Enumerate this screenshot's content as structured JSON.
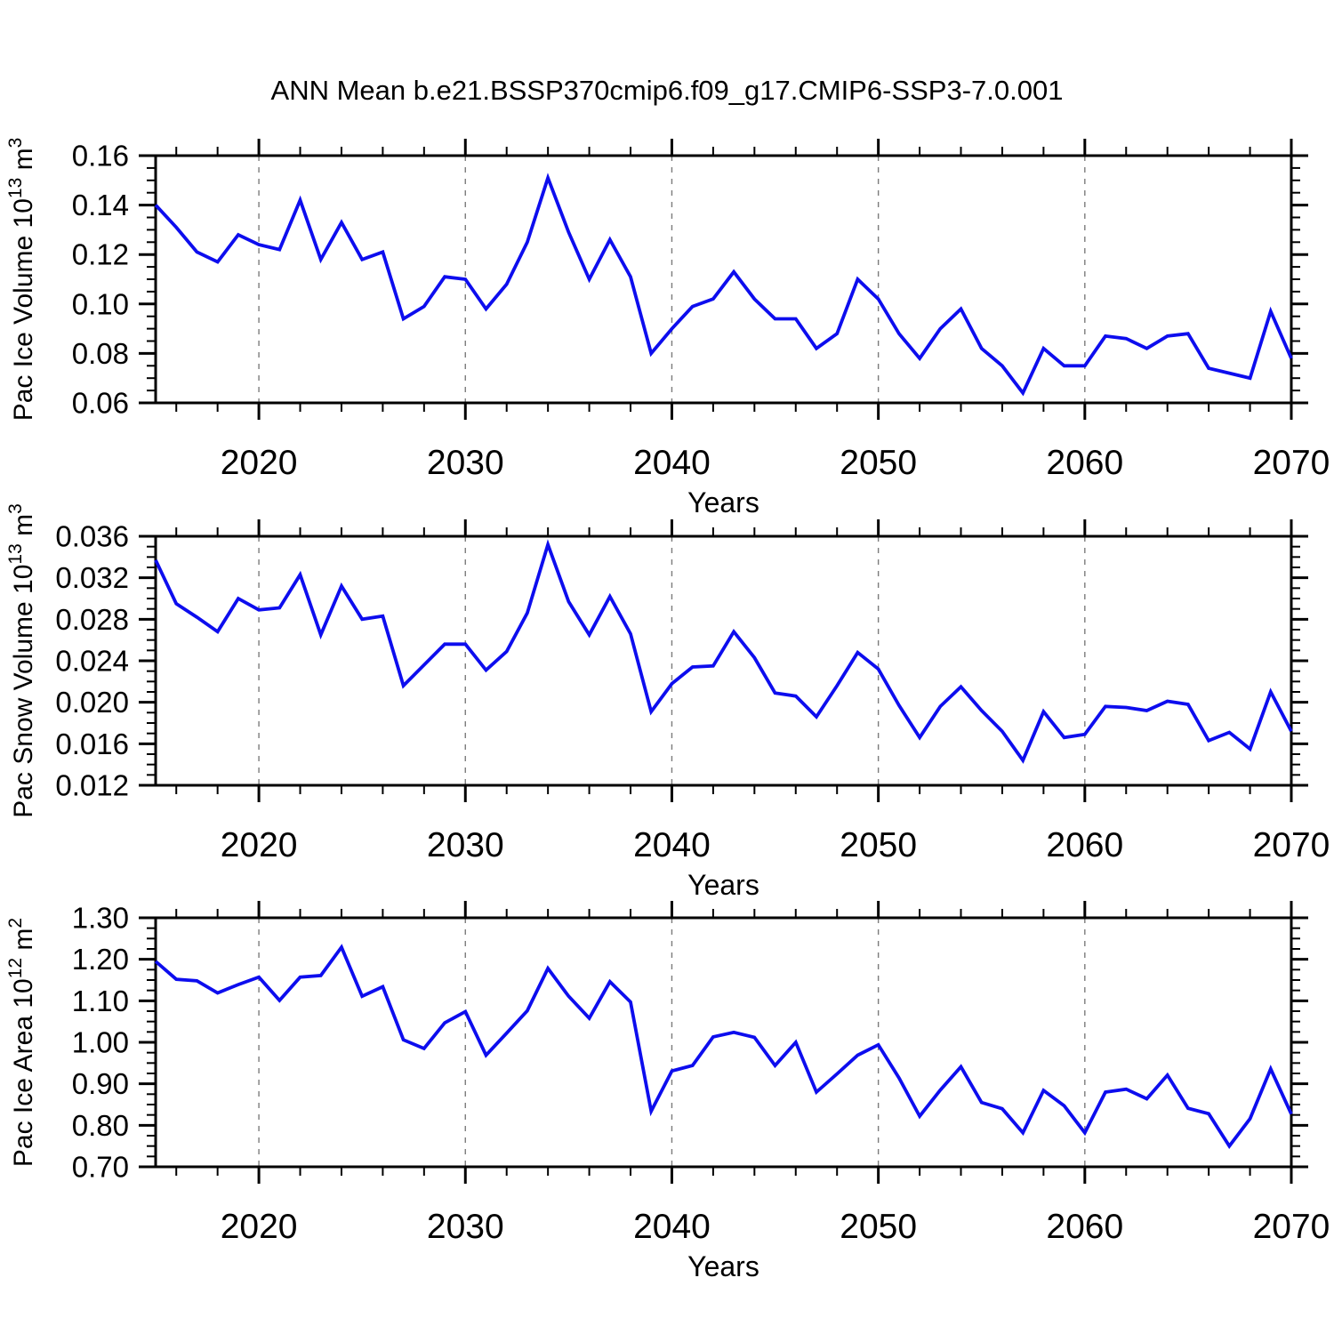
{
  "title": "ANN Mean b.e21.BSSP370cmip6.f09_g17.CMIP6-SSP3-7.0.001",
  "colors": {
    "line": "#0d0dee",
    "axis": "#000000",
    "grid": "#7c7c7c",
    "background": "#ffffff",
    "text": "#000000"
  },
  "x_axis": {
    "label": "Years",
    "ticks": [
      2020,
      2030,
      2040,
      2050,
      2060,
      2070
    ],
    "tick_labels": [
      "2020",
      "2030",
      "2040",
      "2050",
      "2060",
      "2070"
    ],
    "minor_step_years": 2,
    "range": [
      2015,
      2070
    ],
    "grid_years": [
      2020,
      2030,
      2040,
      2050,
      2060
    ],
    "grid_style": "vertical-dashed"
  },
  "chart_data": [
    {
      "type": "line",
      "name": "pac-ice-volume",
      "ylabel": "Pac Ice Volume 10^13 m^3",
      "ylabel_parts": [
        {
          "t": "Pac Ice Volume 10"
        },
        {
          "sup": "13"
        },
        {
          "t": " m"
        },
        {
          "sup": "3"
        }
      ],
      "xlabel": "Years",
      "x_start": 2015,
      "x_step": 1,
      "xlim": [
        2015,
        2070
      ],
      "ylim": [
        0.06,
        0.16
      ],
      "y_ticks": [
        0.16,
        0.14,
        0.12,
        0.1,
        0.08,
        0.06
      ],
      "y_tick_labels": [
        "0.16",
        "0.14",
        "0.12",
        "0.10",
        "0.08",
        "0.06"
      ],
      "y_minors_per_interval": 3,
      "legend": "none",
      "values": [
        0.14,
        0.131,
        0.121,
        0.117,
        0.128,
        0.124,
        0.122,
        0.142,
        0.118,
        0.133,
        0.118,
        0.121,
        0.094,
        0.099,
        0.111,
        0.11,
        0.098,
        0.108,
        0.125,
        0.151,
        0.129,
        0.11,
        0.126,
        0.111,
        0.08,
        0.09,
        0.099,
        0.102,
        0.113,
        0.102,
        0.094,
        0.094,
        0.082,
        0.088,
        0.11,
        0.102,
        0.088,
        0.078,
        0.09,
        0.098,
        0.082,
        0.075,
        0.064,
        0.082,
        0.075,
        0.075,
        0.087,
        0.086,
        0.082,
        0.087,
        0.088,
        0.074,
        0.072,
        0.07,
        0.097,
        0.078
      ]
    },
    {
      "type": "line",
      "name": "pac-snow-volume",
      "ylabel": "Pac Snow Volume 10^13 m^3",
      "ylabel_parts": [
        {
          "t": "Pac Snow Volume 10"
        },
        {
          "sup": "13"
        },
        {
          "t": " m"
        },
        {
          "sup": "3"
        }
      ],
      "xlabel": "Years",
      "x_start": 2015,
      "x_step": 1,
      "xlim": [
        2015,
        2070
      ],
      "ylim": [
        0.012,
        0.036
      ],
      "y_ticks": [
        0.036,
        0.032,
        0.028,
        0.024,
        0.02,
        0.016,
        0.012
      ],
      "y_tick_labels": [
        "0.036",
        "0.032",
        "0.028",
        "0.024",
        "0.020",
        "0.016",
        "0.012"
      ],
      "y_minors_per_interval": 3,
      "legend": "none",
      "values": [
        0.0337,
        0.0295,
        0.0282,
        0.0268,
        0.03,
        0.0289,
        0.0291,
        0.0323,
        0.0265,
        0.0312,
        0.028,
        0.0283,
        0.0216,
        0.0236,
        0.0256,
        0.0256,
        0.0231,
        0.0249,
        0.0286,
        0.0352,
        0.0297,
        0.0265,
        0.0302,
        0.0266,
        0.0191,
        0.0218,
        0.0234,
        0.0235,
        0.0268,
        0.0243,
        0.0209,
        0.0206,
        0.0186,
        0.0216,
        0.0248,
        0.0232,
        0.0197,
        0.0166,
        0.0196,
        0.0215,
        0.0192,
        0.0172,
        0.0144,
        0.0191,
        0.0166,
        0.0169,
        0.0196,
        0.0195,
        0.0192,
        0.0201,
        0.0198,
        0.0163,
        0.0171,
        0.0155,
        0.021,
        0.0172
      ]
    },
    {
      "type": "line",
      "name": "pac-ice-area",
      "ylabel": "Pac Ice Area 10^12 m^2",
      "ylabel_parts": [
        {
          "t": "Pac Ice Area 10"
        },
        {
          "sup": "12"
        },
        {
          "t": " m"
        },
        {
          "sup": "2"
        }
      ],
      "xlabel": "Years",
      "x_start": 2015,
      "x_step": 1,
      "xlim": [
        2015,
        2070
      ],
      "ylim": [
        0.7,
        1.3
      ],
      "y_ticks": [
        1.3,
        1.2,
        1.1,
        1.0,
        0.9,
        0.8,
        0.7
      ],
      "y_tick_labels": [
        "1.30",
        "1.20",
        "1.10",
        "1.00",
        "0.90",
        "0.80",
        "0.70"
      ],
      "y_minors_per_interval": 3,
      "legend": "none",
      "values": [
        1.195,
        1.152,
        1.148,
        1.119,
        1.139,
        1.157,
        1.101,
        1.157,
        1.161,
        1.229,
        1.111,
        1.134,
        1.006,
        0.985,
        1.047,
        1.074,
        0.969,
        1.022,
        1.076,
        1.178,
        1.111,
        1.058,
        1.146,
        1.097,
        0.834,
        0.931,
        0.944,
        1.013,
        1.024,
        1.012,
        0.944,
        1.0,
        0.88,
        0.924,
        0.969,
        0.994,
        0.914,
        0.822,
        0.885,
        0.941,
        0.855,
        0.84,
        0.782,
        0.884,
        0.847,
        0.782,
        0.88,
        0.887,
        0.864,
        0.921,
        0.841,
        0.828,
        0.75,
        0.816,
        0.936,
        0.827
      ]
    }
  ]
}
